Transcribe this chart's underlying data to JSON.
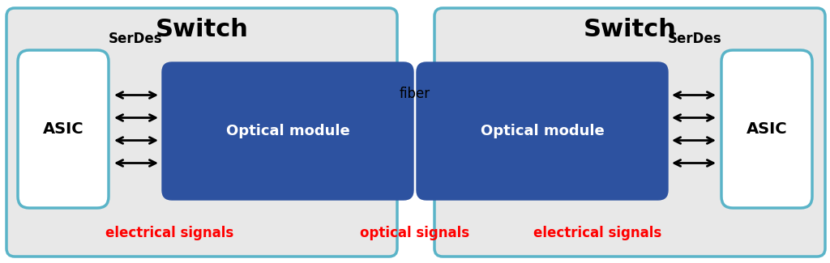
{
  "fig_width": 10.24,
  "fig_height": 3.25,
  "dpi": 100,
  "bg_color": "#ffffff",
  "switch_box_color": "#e8e8e8",
  "switch_box_edge_color": "#5ab4c8",
  "switch_box_edge_width": 2.5,
  "asic_box_color": "#ffffff",
  "asic_box_edge_color": "#5ab4c8",
  "asic_box_edge_width": 2.5,
  "optical_box_color": "#2d52a0",
  "switch_title": "Switch",
  "asic_label": "ASIC",
  "optical_label": "Optical module",
  "serdes_label": "SerDes",
  "electrical_label": "electrical signals",
  "optical_signals_label": "optical signals",
  "fiber_label": "fiber",
  "label_color_red": "#ff0000",
  "label_color_black": "#000000",
  "label_color_white": "#ffffff",
  "arrow_color_black": "#000000",
  "arrow_color_cyan": "#29a8c0",
  "num_arrows": 4,
  "switch_title_fontsize": 22,
  "asic_fontsize": 14,
  "optical_fontsize": 13,
  "serdes_fontsize": 12,
  "signal_fontsize": 12,
  "fiber_fontsize": 12
}
